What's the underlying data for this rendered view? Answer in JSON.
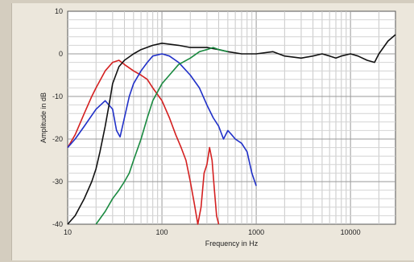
{
  "chart_data": {
    "type": "line",
    "xlabel": "Frequency in Hz",
    "ylabel": "Amplitude in dB",
    "xscale": "log",
    "xlim": [
      10,
      30000
    ],
    "ylim": [
      -40,
      10
    ],
    "grid": true,
    "x_tick_labels": [
      "10",
      "100",
      "1000",
      "10000"
    ],
    "x_tick_values": [
      10,
      100,
      1000,
      10000
    ],
    "y_tick_labels": [
      "10",
      "0",
      "-10",
      "-20",
      "-30",
      "-40"
    ],
    "y_tick_values": [
      10,
      0,
      -10,
      -20,
      -30,
      -40
    ],
    "series": [
      {
        "color": "#d42020",
        "points": [
          [
            10,
            -22
          ],
          [
            12,
            -19
          ],
          [
            15,
            -14
          ],
          [
            18,
            -10
          ],
          [
            20,
            -8
          ],
          [
            25,
            -4
          ],
          [
            30,
            -2
          ],
          [
            35,
            -1.5
          ],
          [
            40,
            -2.5
          ],
          [
            50,
            -4
          ],
          [
            60,
            -5
          ],
          [
            70,
            -6
          ],
          [
            80,
            -8
          ],
          [
            100,
            -11
          ],
          [
            120,
            -15
          ],
          [
            140,
            -19
          ],
          [
            160,
            -22
          ],
          [
            180,
            -25
          ],
          [
            200,
            -30
          ],
          [
            220,
            -35
          ],
          [
            240,
            -40
          ],
          [
            260,
            -36
          ],
          [
            280,
            -28
          ],
          [
            300,
            -26
          ],
          [
            320,
            -22
          ],
          [
            340,
            -25
          ],
          [
            360,
            -32
          ],
          [
            380,
            -38
          ],
          [
            400,
            -40
          ]
        ]
      },
      {
        "color": "#2030c8",
        "points": [
          [
            10,
            -22
          ],
          [
            12,
            -20
          ],
          [
            15,
            -17
          ],
          [
            20,
            -13
          ],
          [
            25,
            -11
          ],
          [
            30,
            -13
          ],
          [
            33,
            -18
          ],
          [
            36,
            -19.5
          ],
          [
            40,
            -15
          ],
          [
            45,
            -10
          ],
          [
            50,
            -7
          ],
          [
            60,
            -4
          ],
          [
            70,
            -2
          ],
          [
            80,
            -0.5
          ],
          [
            100,
            0
          ],
          [
            120,
            -0.5
          ],
          [
            150,
            -2
          ],
          [
            200,
            -5
          ],
          [
            250,
            -8
          ],
          [
            300,
            -12
          ],
          [
            350,
            -15
          ],
          [
            400,
            -17
          ],
          [
            450,
            -20
          ],
          [
            500,
            -18
          ],
          [
            550,
            -19
          ],
          [
            600,
            -20
          ],
          [
            700,
            -21
          ],
          [
            800,
            -23
          ],
          [
            900,
            -28
          ],
          [
            1000,
            -31
          ]
        ]
      },
      {
        "color": "#111111",
        "points": [
          [
            10,
            -40
          ],
          [
            12,
            -38
          ],
          [
            15,
            -34
          ],
          [
            18,
            -30
          ],
          [
            20,
            -27
          ],
          [
            22,
            -23
          ],
          [
            25,
            -17
          ],
          [
            28,
            -11
          ],
          [
            30,
            -7
          ],
          [
            35,
            -3
          ],
          [
            40,
            -1.5
          ],
          [
            50,
            0
          ],
          [
            60,
            1
          ],
          [
            80,
            2
          ],
          [
            100,
            2.5
          ],
          [
            150,
            2
          ],
          [
            200,
            1.5
          ],
          [
            300,
            1.5
          ],
          [
            400,
            1
          ],
          [
            500,
            0.5
          ],
          [
            700,
            0
          ],
          [
            1000,
            0
          ],
          [
            1500,
            0.5
          ],
          [
            2000,
            -0.5
          ],
          [
            3000,
            -1
          ],
          [
            4000,
            -0.5
          ],
          [
            5000,
            0
          ],
          [
            6000,
            -0.5
          ],
          [
            7000,
            -1
          ],
          [
            8000,
            -0.5
          ],
          [
            10000,
            0
          ],
          [
            12000,
            -0.5
          ],
          [
            15000,
            -1.5
          ],
          [
            18000,
            -2
          ],
          [
            20000,
            0
          ],
          [
            25000,
            3
          ],
          [
            30000,
            4.5
          ]
        ]
      },
      {
        "color": "#1a8a40",
        "points": [
          [
            20,
            -40
          ],
          [
            25,
            -37
          ],
          [
            30,
            -34
          ],
          [
            35,
            -32
          ],
          [
            40,
            -30
          ],
          [
            45,
            -28
          ],
          [
            50,
            -25
          ],
          [
            60,
            -20
          ],
          [
            70,
            -15
          ],
          [
            80,
            -11
          ],
          [
            100,
            -7
          ],
          [
            120,
            -5
          ],
          [
            150,
            -2.5
          ],
          [
            200,
            -1
          ],
          [
            250,
            0.5
          ],
          [
            300,
            1
          ],
          [
            350,
            1.5
          ],
          [
            400,
            1
          ],
          [
            500,
            0.5
          ]
        ]
      }
    ]
  }
}
